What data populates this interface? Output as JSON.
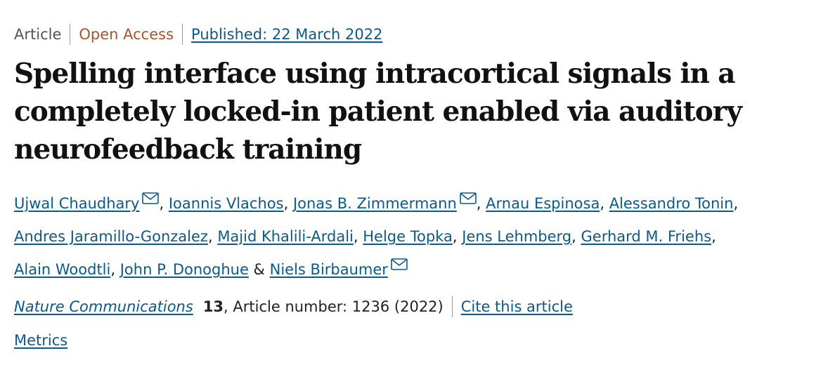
{
  "meta": {
    "article_type": "Article",
    "access": "Open Access",
    "published": "Published: 22 March 2022"
  },
  "title": "Spelling interface using intracortical signals in a completely locked-in patient enabled via auditory neurofeedback training",
  "authors": [
    {
      "name": "Ujwal Chaudhary",
      "email": true
    },
    {
      "name": "Ioannis Vlachos",
      "email": false
    },
    {
      "name": "Jonas B. Zimmermann",
      "email": true
    },
    {
      "name": "Arnau Espinosa",
      "email": false
    },
    {
      "name": "Alessandro Tonin",
      "email": false
    },
    {
      "name": "Andres Jaramillo-Gonzalez",
      "email": false
    },
    {
      "name": "Majid Khalili-Ardali",
      "email": false
    },
    {
      "name": "Helge Topka",
      "email": false
    },
    {
      "name": "Jens Lehmberg",
      "email": false
    },
    {
      "name": "Gerhard M. Friehs",
      "email": false
    },
    {
      "name": "Alain Woodtli",
      "email": false
    },
    {
      "name": "John P. Donoghue",
      "email": false
    },
    {
      "name": "Niels Birbaumer",
      "email": true
    }
  ],
  "separators": {
    "comma": ",",
    "ampersand": "&"
  },
  "citation": {
    "journal": "Nature Communications",
    "volume": "13",
    "article_number": ", Article number: 1236 (2022)",
    "cite_label": "Cite this article"
  },
  "metrics_label": "Metrics",
  "colors": {
    "link": "#0b5a8a",
    "open_access": "#b0532b",
    "muted": "#555555"
  }
}
